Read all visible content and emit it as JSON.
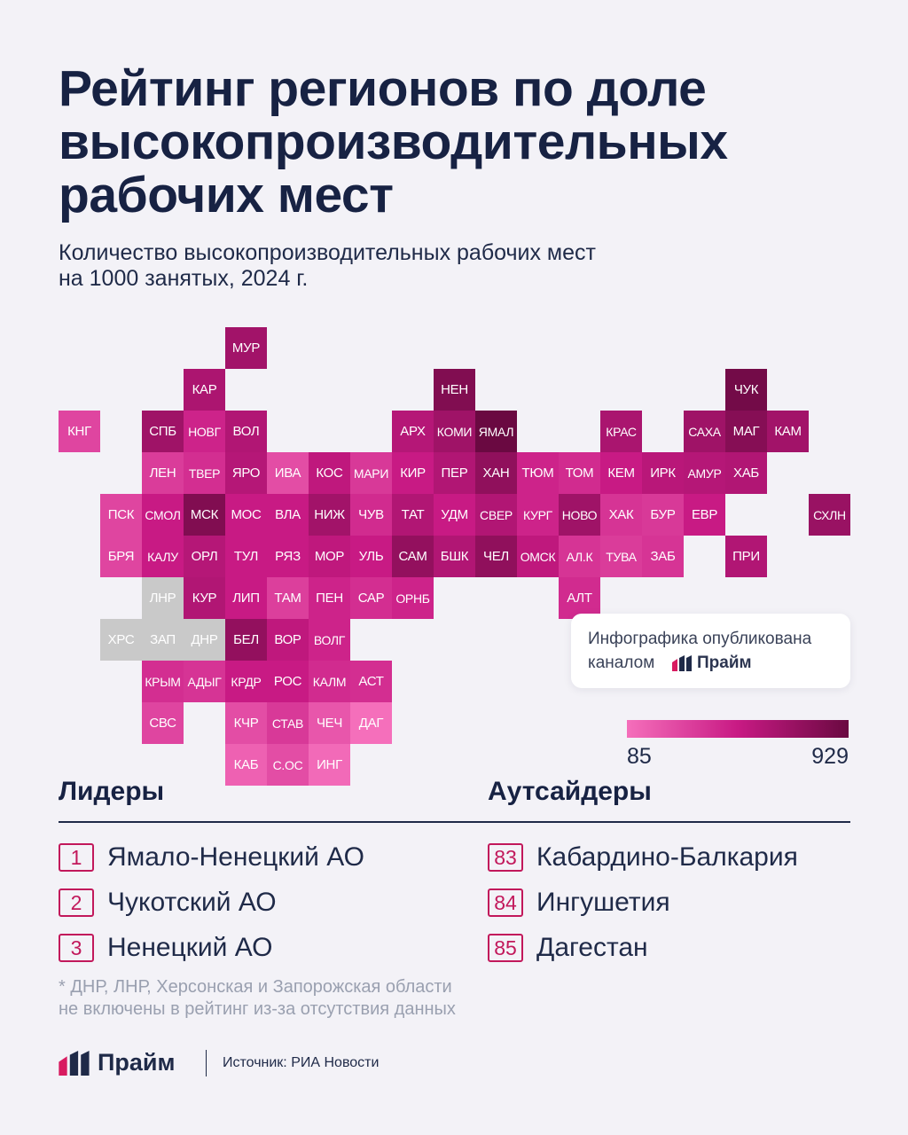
{
  "title_lines": [
    "Рейтинг регионов по доле",
    "высокопроизводительных",
    "рабочих мест"
  ],
  "subtitle_lines": [
    "Количество высокопроизводительных рабочих мест",
    "на 1000 занятых, 2024 г."
  ],
  "note": {
    "line1": "Инфографика опубликована",
    "line2": "каналом",
    "brand": "Прайм"
  },
  "legend": {
    "min": "85",
    "max": "929"
  },
  "leaders": {
    "title": "Лидеры",
    "items": [
      {
        "rank": "1",
        "name": "Ямало-Ненецкий АО"
      },
      {
        "rank": "2",
        "name": "Чукотский АО"
      },
      {
        "rank": "3",
        "name": "Ненецкий АО"
      }
    ]
  },
  "outsiders": {
    "title": "Аутсайдеры",
    "items": [
      {
        "rank": "83",
        "name": "Кабардино-Балкария"
      },
      {
        "rank": "84",
        "name": "Ингушетия"
      },
      {
        "rank": "85",
        "name": "Дагестан"
      }
    ]
  },
  "footnote_lines": [
    "* ДНР, ЛНР, Херсонская и Запорожская области",
    "не включены в рейтинг из-за отсутствия данных"
  ],
  "brand": "Прайм",
  "source": "Источник: РИА Новости",
  "colors": {
    "accent": "#c2185b",
    "text": "#172243",
    "no_data": "#c9c9c9",
    "scale_low": "#f56fbb",
    "scale_high": "#6a0941"
  },
  "chart_data": {
    "type": "heatmap",
    "title": "Рейтинг регионов по доле высокопроизводительных рабочих мест",
    "subtitle": "Количество высокопроизводительных рабочих мест на 1000 занятых, 2024 г.",
    "scale": {
      "min": 85,
      "max": 929
    },
    "tiles": [
      {
        "label": "МУР",
        "col": 5,
        "row": 0,
        "shade": 0.7
      },
      {
        "label": "КАР",
        "col": 4,
        "row": 1,
        "shade": 0.65
      },
      {
        "label": "НЕН",
        "col": 10,
        "row": 1,
        "shade": 0.88
      },
      {
        "label": "ЧУК",
        "col": 17,
        "row": 1,
        "shade": 0.95
      },
      {
        "label": "КНГ",
        "col": 1,
        "row": 2,
        "shade": 0.25
      },
      {
        "label": "СПБ",
        "col": 3,
        "row": 2,
        "shade": 0.72
      },
      {
        "label": "НОВГ",
        "col": 4,
        "row": 2,
        "shade": 0.45
      },
      {
        "label": "ВОЛ",
        "col": 5,
        "row": 2,
        "shade": 0.62
      },
      {
        "label": "АРХ",
        "col": 9,
        "row": 2,
        "shade": 0.6
      },
      {
        "label": "КОМИ",
        "col": 10,
        "row": 2,
        "shade": 0.72
      },
      {
        "label": "ЯМАЛ",
        "col": 11,
        "row": 2,
        "shade": 1.0
      },
      {
        "label": "КРАС",
        "col": 14,
        "row": 2,
        "shade": 0.66
      },
      {
        "label": "САХА",
        "col": 16,
        "row": 2,
        "shade": 0.72
      },
      {
        "label": "МАГ",
        "col": 17,
        "row": 2,
        "shade": 0.85
      },
      {
        "label": "КАМ",
        "col": 18,
        "row": 2,
        "shade": 0.7
      },
      {
        "label": "ЛЕН",
        "col": 3,
        "row": 3,
        "shade": 0.3
      },
      {
        "label": "ТВЕР",
        "col": 4,
        "row": 3,
        "shade": 0.38
      },
      {
        "label": "ЯРО",
        "col": 5,
        "row": 3,
        "shade": 0.6
      },
      {
        "label": "ИВА",
        "col": 6,
        "row": 3,
        "shade": 0.2
      },
      {
        "label": "КОС",
        "col": 7,
        "row": 3,
        "shade": 0.55
      },
      {
        "label": "МАРИ",
        "col": 8,
        "row": 3,
        "shade": 0.32
      },
      {
        "label": "КИР",
        "col": 9,
        "row": 3,
        "shade": 0.5
      },
      {
        "label": "ПЕР",
        "col": 10,
        "row": 3,
        "shade": 0.62
      },
      {
        "label": "ХАН",
        "col": 11,
        "row": 3,
        "shade": 0.8
      },
      {
        "label": "ТЮМ",
        "col": 12,
        "row": 3,
        "shade": 0.45
      },
      {
        "label": "ТОМ",
        "col": 13,
        "row": 3,
        "shade": 0.4
      },
      {
        "label": "КЕМ",
        "col": 14,
        "row": 3,
        "shade": 0.5
      },
      {
        "label": "ИРК",
        "col": 15,
        "row": 3,
        "shade": 0.58
      },
      {
        "label": "АМУР",
        "col": 16,
        "row": 3,
        "shade": 0.6
      },
      {
        "label": "ХАБ",
        "col": 17,
        "row": 3,
        "shade": 0.62
      },
      {
        "label": "ПСК",
        "col": 2,
        "row": 4,
        "shade": 0.25
      },
      {
        "label": "СМОЛ",
        "col": 3,
        "row": 4,
        "shade": 0.5
      },
      {
        "label": "МСК",
        "col": 4,
        "row": 4,
        "shade": 0.88
      },
      {
        "label": "МОС",
        "col": 5,
        "row": 4,
        "shade": 0.5
      },
      {
        "label": "ВЛА",
        "col": 6,
        "row": 4,
        "shade": 0.5
      },
      {
        "label": "НИЖ",
        "col": 7,
        "row": 4,
        "shade": 0.7
      },
      {
        "label": "ЧУВ",
        "col": 8,
        "row": 4,
        "shade": 0.4
      },
      {
        "label": "ТАТ",
        "col": 9,
        "row": 4,
        "shade": 0.62
      },
      {
        "label": "УДМ",
        "col": 10,
        "row": 4,
        "shade": 0.5
      },
      {
        "label": "СВЕР",
        "col": 11,
        "row": 4,
        "shade": 0.62
      },
      {
        "label": "КУРГ",
        "col": 12,
        "row": 4,
        "shade": 0.45
      },
      {
        "label": "НОВО",
        "col": 13,
        "row": 4,
        "shade": 0.72
      },
      {
        "label": "ХАК",
        "col": 14,
        "row": 4,
        "shade": 0.35
      },
      {
        "label": "БУР",
        "col": 15,
        "row": 4,
        "shade": 0.32
      },
      {
        "label": "ЕВР",
        "col": 16,
        "row": 4,
        "shade": 0.5
      },
      {
        "label": "СХЛН",
        "col": 19,
        "row": 4,
        "shade": 0.75
      },
      {
        "label": "БРЯ",
        "col": 2,
        "row": 5,
        "shade": 0.25
      },
      {
        "label": "КАЛУ",
        "col": 3,
        "row": 5,
        "shade": 0.5
      },
      {
        "label": "ОРЛ",
        "col": 4,
        "row": 5,
        "shade": 0.6
      },
      {
        "label": "ТУЛ",
        "col": 5,
        "row": 5,
        "shade": 0.5
      },
      {
        "label": "РЯЗ",
        "col": 6,
        "row": 5,
        "shade": 0.5
      },
      {
        "label": "МОР",
        "col": 7,
        "row": 5,
        "shade": 0.55
      },
      {
        "label": "УЛЬ",
        "col": 8,
        "row": 5,
        "shade": 0.5
      },
      {
        "label": "САМ",
        "col": 9,
        "row": 5,
        "shade": 0.78
      },
      {
        "label": "БШК",
        "col": 10,
        "row": 5,
        "shade": 0.62
      },
      {
        "label": "ЧЕЛ",
        "col": 11,
        "row": 5,
        "shade": 0.8
      },
      {
        "label": "ОМСК",
        "col": 12,
        "row": 5,
        "shade": 0.55
      },
      {
        "label": "АЛ.К",
        "col": 13,
        "row": 5,
        "shade": 0.35
      },
      {
        "label": "ТУВА",
        "col": 14,
        "row": 5,
        "shade": 0.3
      },
      {
        "label": "ЗАБ",
        "col": 15,
        "row": 5,
        "shade": 0.35
      },
      {
        "label": "ПРИ",
        "col": 17,
        "row": 5,
        "shade": 0.62
      },
      {
        "label": "ЛНР",
        "col": 3,
        "row": 6,
        "shade": null
      },
      {
        "label": "КУР",
        "col": 4,
        "row": 6,
        "shade": 0.62
      },
      {
        "label": "ЛИП",
        "col": 5,
        "row": 6,
        "shade": 0.5
      },
      {
        "label": "ТАМ",
        "col": 6,
        "row": 6,
        "shade": 0.28
      },
      {
        "label": "ПЕН",
        "col": 7,
        "row": 6,
        "shade": 0.45
      },
      {
        "label": "САР",
        "col": 8,
        "row": 6,
        "shade": 0.38
      },
      {
        "label": "ОРНБ",
        "col": 9,
        "row": 6,
        "shade": 0.45
      },
      {
        "label": "АЛТ",
        "col": 13,
        "row": 6,
        "shade": 0.4
      },
      {
        "label": "ХРС",
        "col": 2,
        "row": 7,
        "shade": null
      },
      {
        "label": "ЗАП",
        "col": 3,
        "row": 7,
        "shade": null
      },
      {
        "label": "ДНР",
        "col": 4,
        "row": 7,
        "shade": null
      },
      {
        "label": "БЕЛ",
        "col": 5,
        "row": 7,
        "shade": 0.78
      },
      {
        "label": "ВОР",
        "col": 6,
        "row": 7,
        "shade": 0.55
      },
      {
        "label": "ВОЛГ",
        "col": 7,
        "row": 7,
        "shade": 0.45
      },
      {
        "label": "КРЫМ",
        "col": 3,
        "row": 8,
        "shade": 0.38
      },
      {
        "label": "АДЫГ",
        "col": 4,
        "row": 8,
        "shade": 0.35
      },
      {
        "label": "КРДР",
        "col": 5,
        "row": 8,
        "shade": 0.5
      },
      {
        "label": "РОС",
        "col": 6,
        "row": 8,
        "shade": 0.5
      },
      {
        "label": "КАЛМ",
        "col": 7,
        "row": 8,
        "shade": 0.4
      },
      {
        "label": "АСТ",
        "col": 8,
        "row": 8,
        "shade": 0.38
      },
      {
        "label": "СВС",
        "col": 3,
        "row": 9,
        "shade": 0.25
      },
      {
        "label": "КЧР",
        "col": 5,
        "row": 9,
        "shade": 0.2
      },
      {
        "label": "СТАВ",
        "col": 6,
        "row": 9,
        "shade": 0.32
      },
      {
        "label": "ЧЕЧ",
        "col": 7,
        "row": 9,
        "shade": 0.15
      },
      {
        "label": "ДАГ",
        "col": 8,
        "row": 9,
        "shade": 0.0
      },
      {
        "label": "КАБ",
        "col": 5,
        "row": 10,
        "shade": 0.08
      },
      {
        "label": "С.ОС",
        "col": 6,
        "row": 10,
        "shade": 0.2
      },
      {
        "label": "ИНГ",
        "col": 7,
        "row": 10,
        "shade": 0.03
      }
    ]
  }
}
